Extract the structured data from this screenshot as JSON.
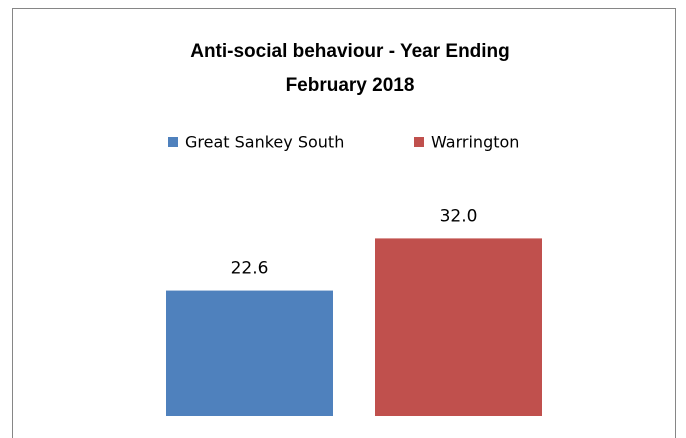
{
  "chart_data": {
    "type": "bar",
    "title": [
      "Anti-social behaviour - Year Ending",
      "February 2018"
    ],
    "categories": [
      null
    ],
    "series": [
      {
        "name": "Great Sankey South",
        "color": "#4f81bd",
        "values": [
          22.6
        ],
        "value_labels": [
          "22.6"
        ]
      },
      {
        "name": "Warrington",
        "color": "#c0504d",
        "values": [
          32.0
        ],
        "value_labels": [
          "32.0"
        ]
      }
    ]
  }
}
